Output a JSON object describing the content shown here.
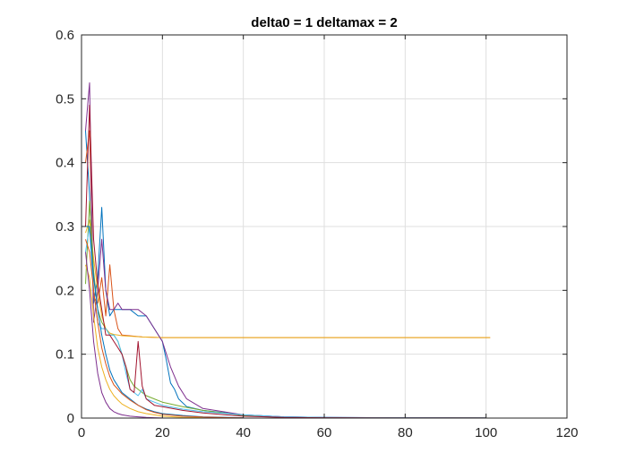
{
  "chart_data": {
    "type": "line",
    "title": "delta0 = 1 deltamax = 2",
    "xlabel": "",
    "ylabel": "",
    "xlim": [
      0,
      120
    ],
    "ylim": [
      0,
      0.6
    ],
    "xticks": [
      0,
      20,
      40,
      60,
      80,
      100,
      120
    ],
    "yticks": [
      0,
      0.1,
      0.2,
      0.3,
      0.4,
      0.5,
      0.6
    ],
    "xtick_labels": [
      "0",
      "20",
      "40",
      "60",
      "80",
      "100",
      "120"
    ],
    "ytick_labels": [
      "0",
      "0.1",
      "0.2",
      "0.3",
      "0.4",
      "0.5",
      "0.6"
    ],
    "grid": true,
    "box": true,
    "series": [
      {
        "color": "#0072BD",
        "x": [
          1,
          2,
          3,
          4,
          5,
          6,
          7,
          8,
          9,
          10,
          12,
          14,
          16,
          18,
          20,
          21,
          22,
          23,
          24,
          26,
          30,
          40,
          50,
          60,
          80,
          100
        ],
        "y": [
          0.45,
          0.35,
          0.18,
          0.22,
          0.33,
          0.2,
          0.16,
          0.17,
          0.17,
          0.17,
          0.17,
          0.16,
          0.16,
          0.14,
          0.12,
          0.09,
          0.055,
          0.045,
          0.03,
          0.018,
          0.012,
          0.005,
          0.002,
          0.001,
          0.0005,
          0.0003
        ]
      },
      {
        "color": "#D95319",
        "x": [
          1,
          2,
          3,
          4,
          5,
          6,
          7,
          8,
          9,
          10,
          15,
          20,
          30,
          40,
          50,
          60,
          80,
          101
        ],
        "y": [
          0.4,
          0.45,
          0.19,
          0.18,
          0.22,
          0.16,
          0.24,
          0.17,
          0.14,
          0.13,
          0.127,
          0.126,
          0.126,
          0.126,
          0.126,
          0.126,
          0.126,
          0.126
        ]
      },
      {
        "color": "#EDB120",
        "x": [
          1,
          2,
          3,
          4,
          5,
          6,
          7,
          8,
          9,
          10,
          15,
          20,
          30,
          40,
          50,
          60,
          80,
          101
        ],
        "y": [
          0.29,
          0.31,
          0.25,
          0.2,
          0.16,
          0.14,
          0.133,
          0.131,
          0.13,
          0.129,
          0.127,
          0.126,
          0.126,
          0.126,
          0.126,
          0.126,
          0.126,
          0.126
        ]
      },
      {
        "color": "#7E2F8E",
        "x": [
          1,
          2,
          3,
          4,
          5,
          6,
          7,
          8,
          9,
          10,
          12,
          14,
          16,
          18,
          20,
          22,
          24,
          26,
          30,
          40,
          50,
          60,
          80,
          100
        ],
        "y": [
          0.45,
          0.525,
          0.15,
          0.2,
          0.28,
          0.2,
          0.17,
          0.17,
          0.18,
          0.17,
          0.17,
          0.17,
          0.16,
          0.14,
          0.12,
          0.08,
          0.05,
          0.03,
          0.015,
          0.005,
          0.002,
          0.001,
          0.0005,
          0.0002
        ]
      },
      {
        "color": "#77AC30",
        "x": [
          1,
          2,
          3,
          4,
          5,
          6,
          7,
          8,
          9,
          10,
          11,
          12,
          13,
          14,
          15,
          16,
          18,
          20,
          25,
          30,
          40,
          50,
          60,
          80,
          100
        ],
        "y": [
          0.21,
          0.34,
          0.23,
          0.17,
          0.15,
          0.14,
          0.13,
          0.13,
          0.12,
          0.1,
          0.08,
          0.06,
          0.05,
          0.045,
          0.04,
          0.035,
          0.03,
          0.025,
          0.018,
          0.012,
          0.004,
          0.001,
          0.0005,
          0.0002,
          0.0001
        ]
      },
      {
        "color": "#4DBEEE",
        "x": [
          1,
          2,
          3,
          4,
          5,
          6,
          7,
          8,
          9,
          10,
          11,
          12,
          13,
          14,
          15,
          16,
          18,
          20,
          25,
          30,
          40,
          50,
          60,
          80,
          100
        ],
        "y": [
          0.26,
          0.3,
          0.2,
          0.15,
          0.14,
          0.14,
          0.13,
          0.13,
          0.12,
          0.1,
          0.07,
          0.045,
          0.04,
          0.035,
          0.045,
          0.03,
          0.025,
          0.02,
          0.014,
          0.01,
          0.005,
          0.002,
          0.001,
          0.0004,
          0.0002
        ]
      },
      {
        "color": "#A2142F",
        "x": [
          1,
          2,
          3,
          4,
          5,
          6,
          7,
          8,
          9,
          10,
          11,
          12,
          13,
          14,
          15,
          16,
          18,
          20,
          25,
          30,
          40,
          50,
          60,
          80,
          100
        ],
        "y": [
          0.3,
          0.49,
          0.28,
          0.21,
          0.17,
          0.13,
          0.13,
          0.12,
          0.11,
          0.1,
          0.08,
          0.045,
          0.04,
          0.12,
          0.05,
          0.03,
          0.02,
          0.018,
          0.012,
          0.008,
          0.003,
          0.001,
          0.0005,
          0.0002,
          0.0001
        ]
      },
      {
        "color": "#0072BD",
        "x": [
          1,
          2,
          3,
          4,
          5,
          6,
          7,
          8,
          9,
          10,
          12,
          14,
          16,
          18,
          20,
          25,
          30,
          40
        ],
        "y": [
          0.3,
          0.3,
          0.22,
          0.17,
          0.13,
          0.1,
          0.075,
          0.06,
          0.05,
          0.04,
          0.03,
          0.02,
          0.014,
          0.01,
          0.007,
          0.004,
          0.002,
          0.0005
        ]
      },
      {
        "color": "#D95319",
        "x": [
          1,
          2,
          3,
          4,
          5,
          6,
          7,
          8,
          9,
          10,
          12,
          14,
          16,
          18,
          20,
          25,
          30,
          40
        ],
        "y": [
          0.28,
          0.26,
          0.2,
          0.15,
          0.11,
          0.085,
          0.065,
          0.052,
          0.045,
          0.038,
          0.028,
          0.02,
          0.013,
          0.009,
          0.006,
          0.003,
          0.0015,
          0.0003
        ]
      },
      {
        "color": "#EDB120",
        "x": [
          1,
          2,
          3,
          4,
          5,
          6,
          7,
          8,
          9,
          10,
          12,
          14,
          16,
          18,
          20,
          25,
          30
        ],
        "y": [
          0.24,
          0.22,
          0.16,
          0.11,
          0.08,
          0.06,
          0.045,
          0.035,
          0.028,
          0.022,
          0.015,
          0.01,
          0.007,
          0.005,
          0.003,
          0.001,
          0.0005
        ]
      },
      {
        "color": "#7E2F8E",
        "x": [
          1,
          2,
          3,
          4,
          5,
          6,
          7,
          8,
          9,
          10,
          12,
          14,
          16,
          18,
          20
        ],
        "y": [
          0.26,
          0.2,
          0.12,
          0.07,
          0.04,
          0.025,
          0.015,
          0.01,
          0.007,
          0.005,
          0.003,
          0.002,
          0.001,
          0.0005,
          0.0002
        ]
      }
    ]
  }
}
